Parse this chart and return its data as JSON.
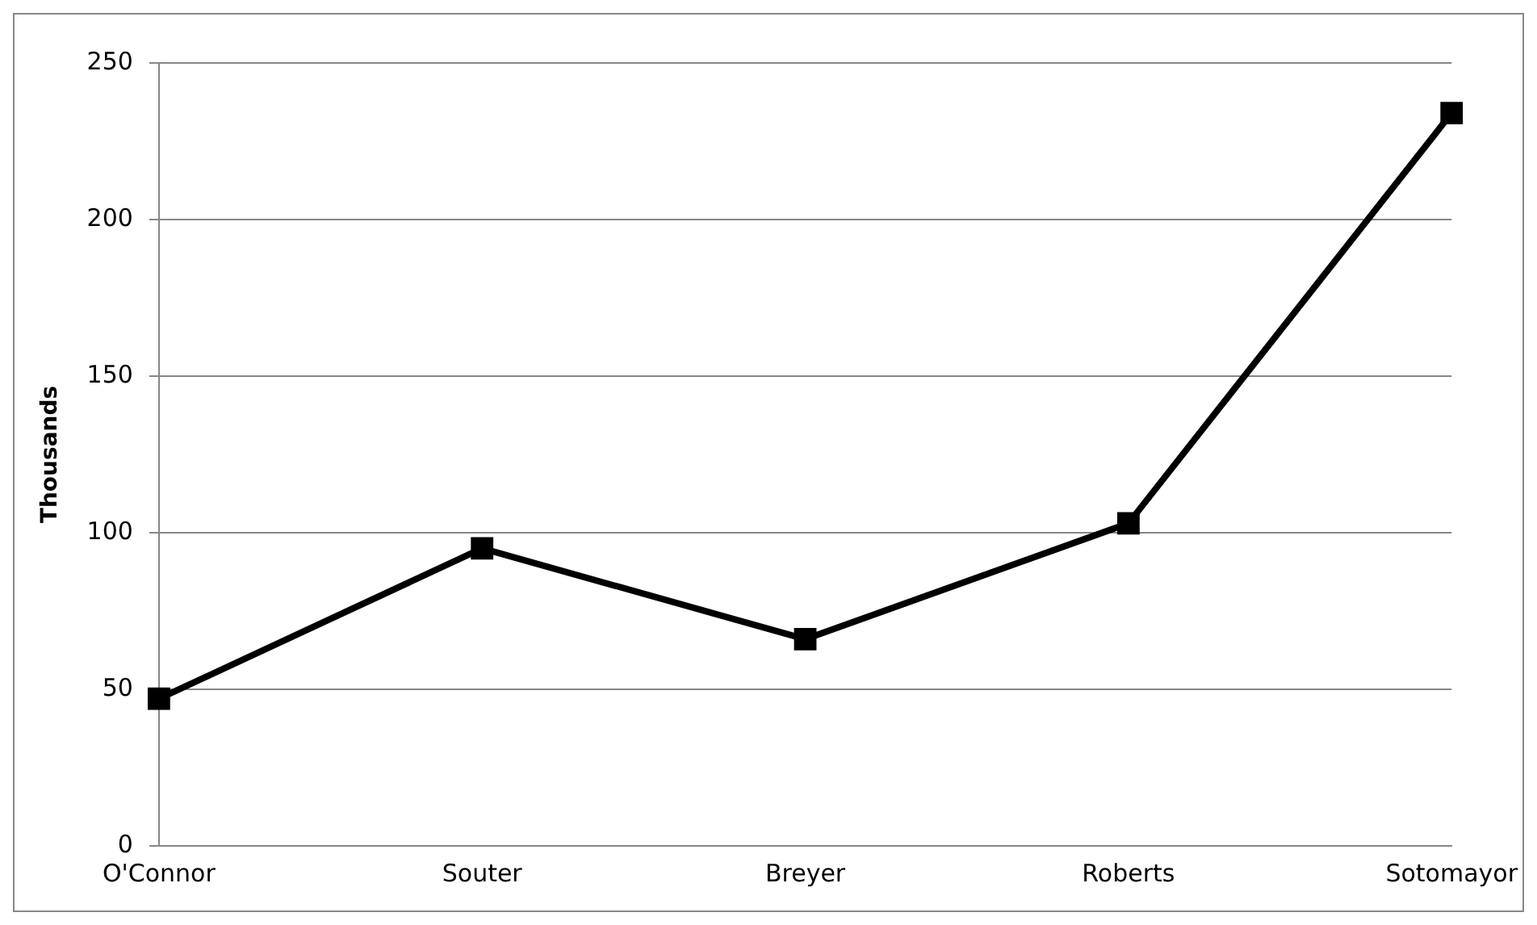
{
  "chart_data": {
    "type": "line",
    "ylabel": "Thousands",
    "categories": [
      "O'Connor",
      "Souter",
      "Breyer",
      "Roberts",
      "Sotomayor"
    ],
    "series": [
      {
        "color": "#000000",
        "values": [
          47,
          95,
          66,
          103,
          234
        ]
      }
    ],
    "ylim": [
      0,
      250
    ],
    "yticks": [
      0,
      50,
      100,
      150,
      200,
      250
    ],
    "grid": "y",
    "marker": "square",
    "line_style": "solid",
    "legend": false
  }
}
